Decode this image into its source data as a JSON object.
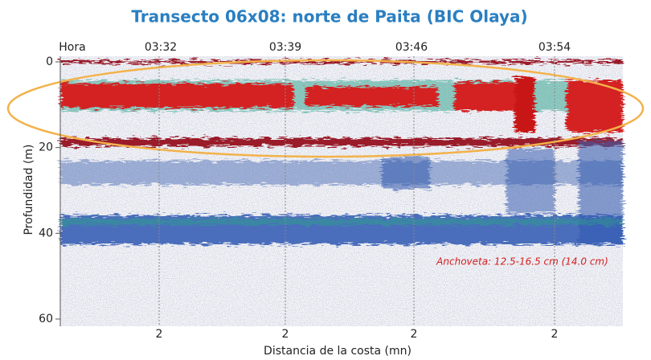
{
  "chart_data": {
    "type": "echogram",
    "title": "Transecto 06x08: norte de Paita (BIC  Olaya)",
    "top_labels": [
      "Hora",
      "03:32",
      "03:39",
      "03:46",
      "03:54"
    ],
    "bottom_labels": [
      "2",
      "2",
      "2",
      "2"
    ],
    "xlabel": "Distancia de la costa (mn)",
    "ylabel": "Profundidad (m)",
    "ylim": [
      0,
      60
    ],
    "yticks": [
      0,
      20,
      40,
      60
    ],
    "annotation": "Anchoveta: 12.5-16.5 cm (14.0 cm)"
  }
}
